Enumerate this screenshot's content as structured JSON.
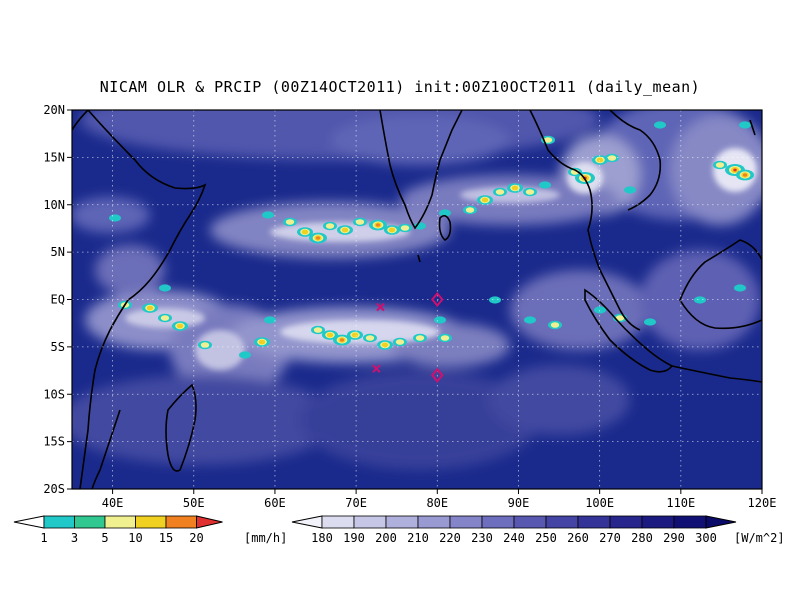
{
  "title": "NICAM OLR & PRCIP (00Z14OCT2011) init:00Z10OCT2011 (daily_mean)",
  "map": {
    "lon_range": [
      35,
      120
    ],
    "lat_range": [
      -20,
      20
    ],
    "gridlines": "dotted",
    "background_color": "#1a2a8c"
  },
  "axes": {
    "lat_labels": [
      "20N",
      "15N",
      "10N",
      "5N",
      "EQ",
      "5S",
      "10S",
      "15S",
      "20S"
    ],
    "lon_labels": [
      "40E",
      "50E",
      "60E",
      "70E",
      "80E",
      "90E",
      "100E",
      "110E",
      "120E"
    ]
  },
  "markers": [
    {
      "symbol": "x",
      "lon": 73,
      "lat": -0.8,
      "color": "#d01070"
    },
    {
      "symbol": "x",
      "lon": 72.5,
      "lat": -7.3,
      "color": "#d01070"
    },
    {
      "symbol": "diamond",
      "lon": 80,
      "lat": 0,
      "color": "#d01070"
    },
    {
      "symbol": "diamond",
      "lon": 80,
      "lat": -8,
      "color": "#d01070"
    }
  ],
  "precip_legend": {
    "labels": [
      "1",
      "3",
      "5",
      "10",
      "15",
      "20"
    ],
    "unit": "[mm/h]",
    "colors": [
      "#20c8c8",
      "#30c890",
      "#f0f090",
      "#f0d020",
      "#f08020",
      "#e03030"
    ]
  },
  "olr_legend": {
    "labels": [
      "180",
      "190",
      "200",
      "210",
      "220",
      "230",
      "240",
      "250",
      "260",
      "270",
      "280",
      "290",
      "300"
    ],
    "unit": "[W/m^2]",
    "colors": [
      "#f2f2fa",
      "#dcdcf0",
      "#c6c6e6",
      "#b0b0dc",
      "#9a9ad2",
      "#8484c8",
      "#6e6ebe",
      "#5858b0",
      "#4444a4",
      "#343498",
      "#26268c",
      "#1a1a80",
      "#101074",
      "#0a0a68"
    ]
  }
}
